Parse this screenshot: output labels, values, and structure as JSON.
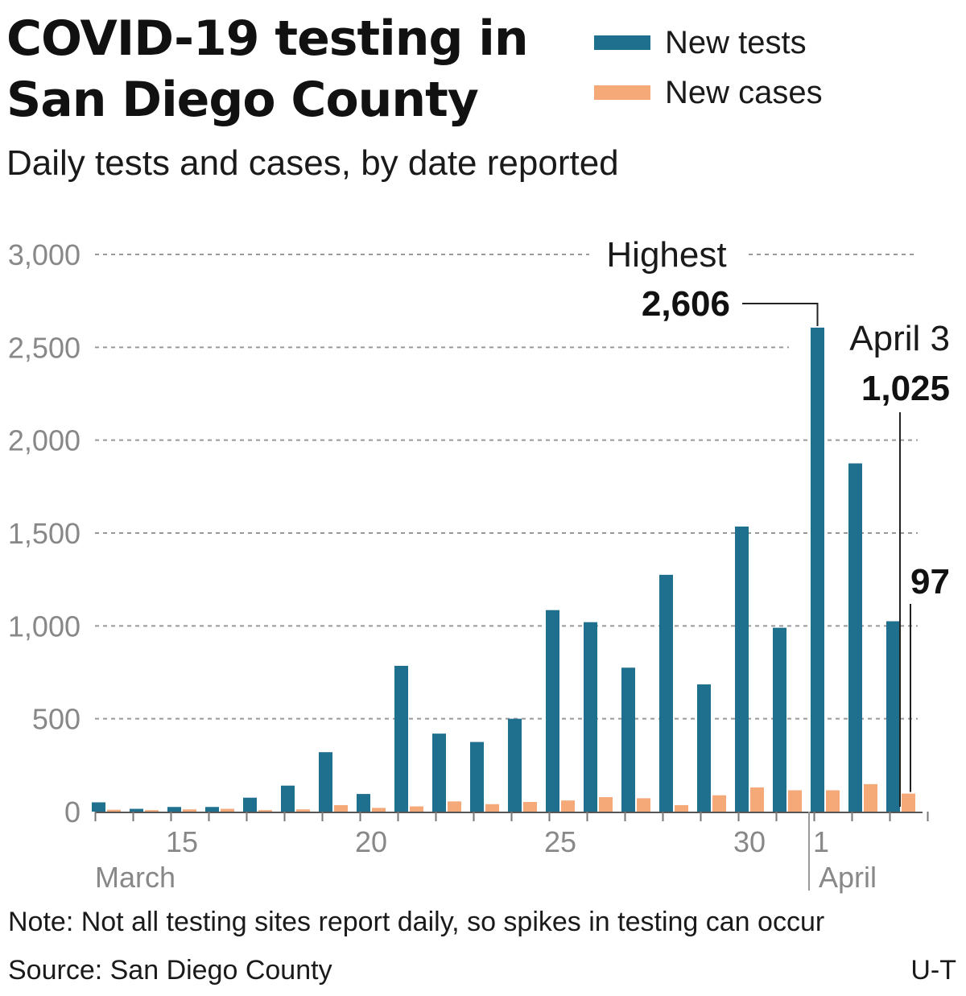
{
  "title": "COVID-19 testing in San Diego County",
  "subtitle": "Daily tests and cases, by date reported",
  "legend": [
    {
      "label": "New tests",
      "color": "#1f6f8f"
    },
    {
      "label": "New cases",
      "color": "#f5a878"
    }
  ],
  "note": "Note: Not all testing sites report daily, so spikes in testing can occur",
  "source": "Source: San Diego County",
  "credit": "U-T",
  "chart_data": {
    "type": "bar",
    "x": [
      "Mar 13",
      "Mar 14",
      "Mar 15",
      "Mar 16",
      "Mar 17",
      "Mar 18",
      "Mar 19",
      "Mar 20",
      "Mar 21",
      "Mar 22",
      "Mar 23",
      "Mar 24",
      "Mar 25",
      "Mar 26",
      "Mar 27",
      "Mar 28",
      "Mar 29",
      "Mar 30",
      "Mar 31",
      "Apr 1",
      "Apr 2",
      "Apr 3"
    ],
    "series": [
      {
        "name": "New tests",
        "color": "#1f6f8f",
        "values": [
          50,
          15,
          25,
          25,
          75,
          140,
          320,
          95,
          785,
          420,
          375,
          500,
          1085,
          1020,
          775,
          1275,
          685,
          1535,
          990,
          2606,
          1875,
          1025
        ]
      },
      {
        "name": "New cases",
        "color": "#f5a878",
        "values": [
          10,
          8,
          12,
          15,
          8,
          12,
          35,
          20,
          28,
          55,
          40,
          52,
          60,
          78,
          72,
          35,
          88,
          130,
          115,
          115,
          148,
          97
        ]
      }
    ],
    "ylim": [
      0,
      3000
    ],
    "yticks": [
      0,
      500,
      1000,
      1500,
      2000,
      2500,
      3000
    ],
    "ytick_labels": [
      "0",
      "500",
      "1,000",
      "1,500",
      "2,000",
      "2,500",
      "3,000"
    ],
    "xtick_labels": [
      {
        "label": "15",
        "index": 2
      },
      {
        "label": "20",
        "index": 7
      },
      {
        "label": "25",
        "index": 12
      },
      {
        "label": "30",
        "index": 17
      },
      {
        "label": "1",
        "index": 19
      }
    ],
    "month_labels": [
      {
        "label": "March",
        "index": 0
      },
      {
        "label": "April",
        "index": 19
      }
    ],
    "grid": true,
    "annotations": [
      {
        "label": "Highest",
        "value_label": "2,606",
        "series": 0,
        "index": 19
      },
      {
        "label": "April 3",
        "value_label": "1,025",
        "series": 0,
        "index": 21
      },
      {
        "label": "",
        "value_label": "97",
        "series": 1,
        "index": 21
      }
    ]
  }
}
